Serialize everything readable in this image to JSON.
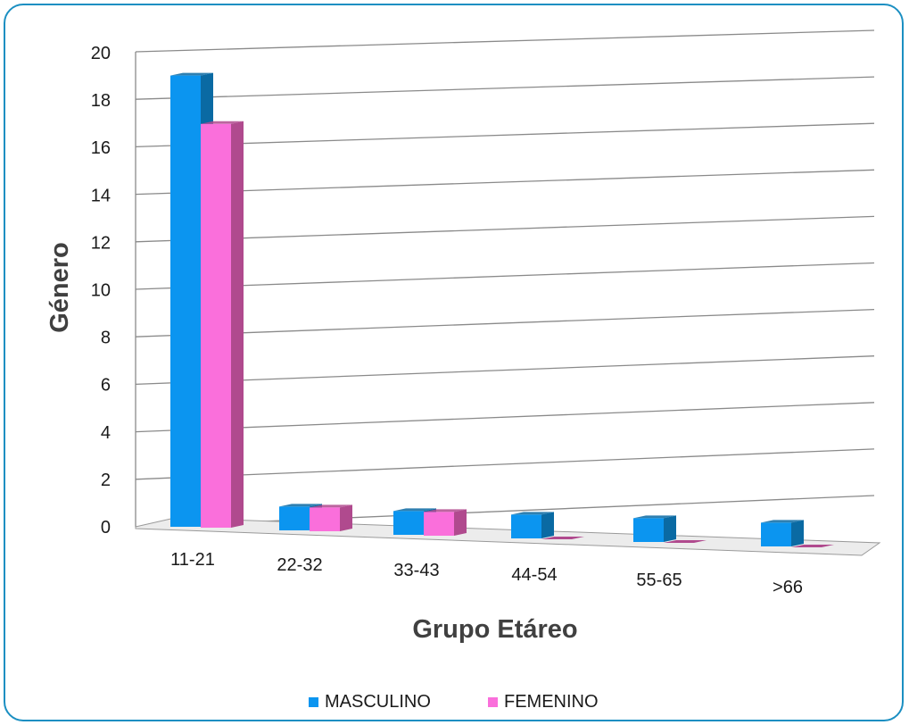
{
  "chart_data": {
    "type": "bar",
    "title": "",
    "xlabel": "Grupo Etáreo",
    "ylabel": "Género",
    "categories": [
      "11-21",
      "22-32",
      "33-43",
      "44-54",
      "55-65",
      ">66"
    ],
    "series": [
      {
        "name": "MASCULINO",
        "values": [
          19,
          1,
          1,
          1,
          1,
          1
        ]
      },
      {
        "name": "FEMENINO",
        "values": [
          17,
          1,
          1,
          0,
          0,
          0
        ]
      }
    ],
    "ylim": [
      0,
      20
    ],
    "yticks": [
      "0",
      "2",
      "4",
      "6",
      "8",
      "10",
      "12",
      "14",
      "16",
      "18",
      "20"
    ],
    "grid": true,
    "legend_position": "bottom",
    "style": "3d-clustered-column",
    "colors": {
      "MASCULINO": "#0b95f0",
      "MASCULINO_side": "#0a6aa3",
      "FEMENINO": "#fa6fdb",
      "FEMENINO_side": "#b04a8e",
      "grid": "#8a8a8a",
      "frame": "#1b8fc2"
    }
  }
}
